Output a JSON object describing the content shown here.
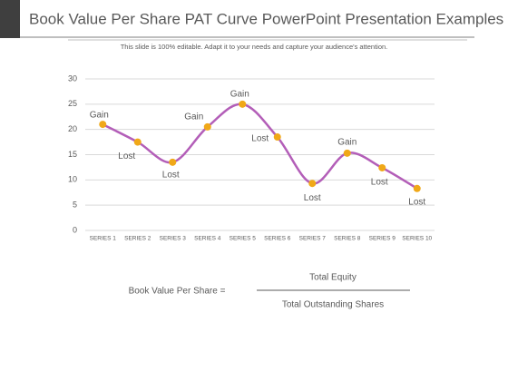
{
  "header": {
    "title": "Book Value Per Share PAT Curve PowerPoint Presentation Examples",
    "subtitle": "This slide is 100% editable. Adapt it to your needs and capture your audience's attention."
  },
  "chart_data": {
    "type": "line",
    "categories": [
      "SERIES 1",
      "SERIES 2",
      "SERIES 3",
      "SERIES 4",
      "SERIES 5",
      "SERIES 6",
      "SERIES 7",
      "SERIES 8",
      "SERIES 9",
      "SERIES 10"
    ],
    "values": [
      21,
      17.5,
      13.5,
      20.5,
      25,
      18.5,
      9.3,
      15.3,
      12.4,
      8.3
    ],
    "point_labels": [
      "Gain",
      "Lost",
      "Lost",
      "Gain",
      "Gain",
      "Lost",
      "Lost",
      "Gain",
      "Lost",
      "Lost"
    ],
    "color": "#b35eb8",
    "marker_color": "#f0a818",
    "ylim": [
      0,
      30
    ],
    "yticks": [
      0,
      5,
      10,
      15,
      20,
      25,
      30
    ],
    "grid": true,
    "smooth": true
  },
  "formula": {
    "lhs": "Book Value Per Share =",
    "numerator": "Total Equity",
    "denominator": "Total Outstanding Shares"
  }
}
